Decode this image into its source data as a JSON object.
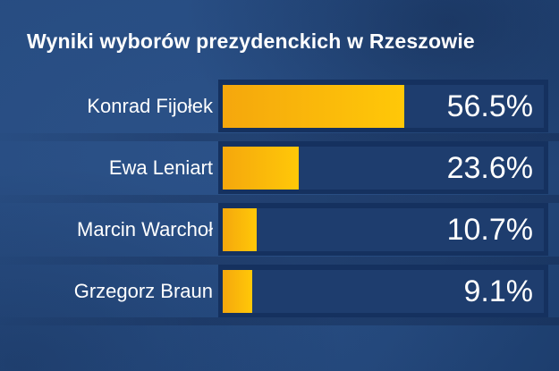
{
  "chart_data": {
    "type": "bar",
    "orientation": "horizontal",
    "title": "Wyniki wyborów prezydenckich w Rzeszowie",
    "categories": [
      "Konrad Fijołek",
      "Ewa Leniart",
      "Marcin Warchoł",
      "Grzegorz Braun"
    ],
    "values": [
      56.5,
      23.6,
      10.7,
      9.1
    ],
    "value_labels": [
      "56.5%",
      "23.6%",
      "10.7%",
      "9.1%"
    ],
    "unit": "%",
    "xlim": [
      0,
      100
    ],
    "grid": "off",
    "legend": "none",
    "colors": {
      "background": "#24487C",
      "bar_fill_start": "#F5A70D",
      "bar_fill_end": "#FFC808",
      "bar_track": "#1E3D6E",
      "bar_frame": "#15315F",
      "text": "#FFFFFF"
    }
  }
}
